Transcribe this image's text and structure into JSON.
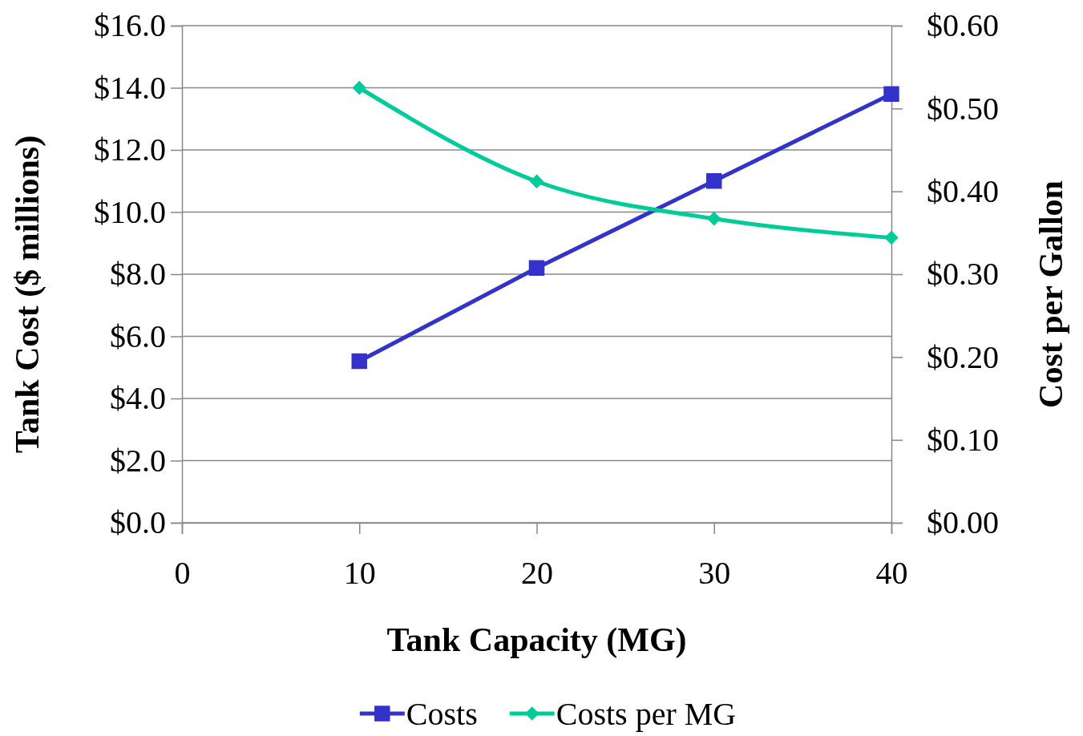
{
  "chart_data": {
    "type": "line",
    "xlabel": "Tank Capacity (MG)",
    "ylabel": "Tank Cost ($ millions)",
    "y2label": "Cost per Gallon",
    "x": [
      10,
      20,
      30,
      40
    ],
    "series": [
      {
        "name": "Costs",
        "color": "#3333cc",
        "marker": "square",
        "values": [
          5.2,
          8.2,
          11.0,
          13.8
        ]
      },
      {
        "name": "Costs per MG",
        "color": "#00cc99",
        "marker": "diamond",
        "axis": "y2",
        "values": [
          0.525,
          0.412,
          0.367,
          0.344
        ]
      }
    ],
    "xlim": [
      0,
      40
    ],
    "xticks": [
      0,
      10,
      20,
      30,
      40
    ],
    "ylim": [
      0,
      16
    ],
    "yticks": [
      {
        "value": 0,
        "label": "$0.0"
      },
      {
        "value": 2,
        "label": "$2.0"
      },
      {
        "value": 4,
        "label": "$4.0"
      },
      {
        "value": 6,
        "label": "$6.0"
      },
      {
        "value": 8,
        "label": "$8.0"
      },
      {
        "value": 10,
        "label": "$10.0"
      },
      {
        "value": 12,
        "label": "$12.0"
      },
      {
        "value": 14,
        "label": "$14.0"
      },
      {
        "value": 16,
        "label": "$16.0"
      }
    ],
    "y2lim": [
      0,
      0.6
    ],
    "y2ticks": [
      {
        "value": 0,
        "label": "$0.00"
      },
      {
        "value": 0.1,
        "label": "$0.10"
      },
      {
        "value": 0.2,
        "label": "$0.20"
      },
      {
        "value": 0.3,
        "label": "$0.30"
      },
      {
        "value": 0.4,
        "label": "$0.40"
      },
      {
        "value": 0.5,
        "label": "$0.50"
      },
      {
        "value": 0.6,
        "label": "$0.60"
      }
    ],
    "grid": "y",
    "legend": "bottom"
  }
}
